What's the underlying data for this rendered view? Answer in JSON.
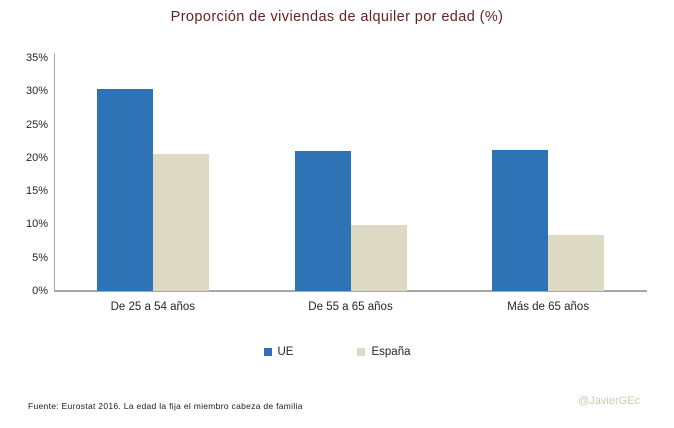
{
  "title": "Proporción de viviendas de alquiler por edad (%)",
  "chart_data": {
    "type": "bar",
    "categories": [
      "De 25 a 54 años",
      "De 55 a 65 años",
      "Más de 65 años"
    ],
    "series": [
      {
        "name": "UE",
        "color": "#2e73b5",
        "values": [
          30.3,
          21.0,
          21.2
        ]
      },
      {
        "name": "España",
        "color": "#ddd9c3",
        "values": [
          20.6,
          9.9,
          8.4
        ]
      }
    ],
    "title": "Proporción de viviendas de alquiler por edad (%)",
    "xlabel": "",
    "ylabel": "",
    "y_axis": {
      "min": 0,
      "max": 35,
      "step": 5,
      "tick_suffix": "%"
    },
    "grid": false,
    "legend_position": "bottom"
  },
  "colors": {
    "title": "#632423",
    "axis": "#a6a6a6",
    "ue_blue": "#2e73b5",
    "espana_beige": "#ddd9c3",
    "attribution": "#d2c9aa"
  },
  "footer": {
    "source": "Fuente: Eurostat 2016. La edad la fija el miembro cabeza de familia",
    "attribution": "@JavierGEc"
  }
}
